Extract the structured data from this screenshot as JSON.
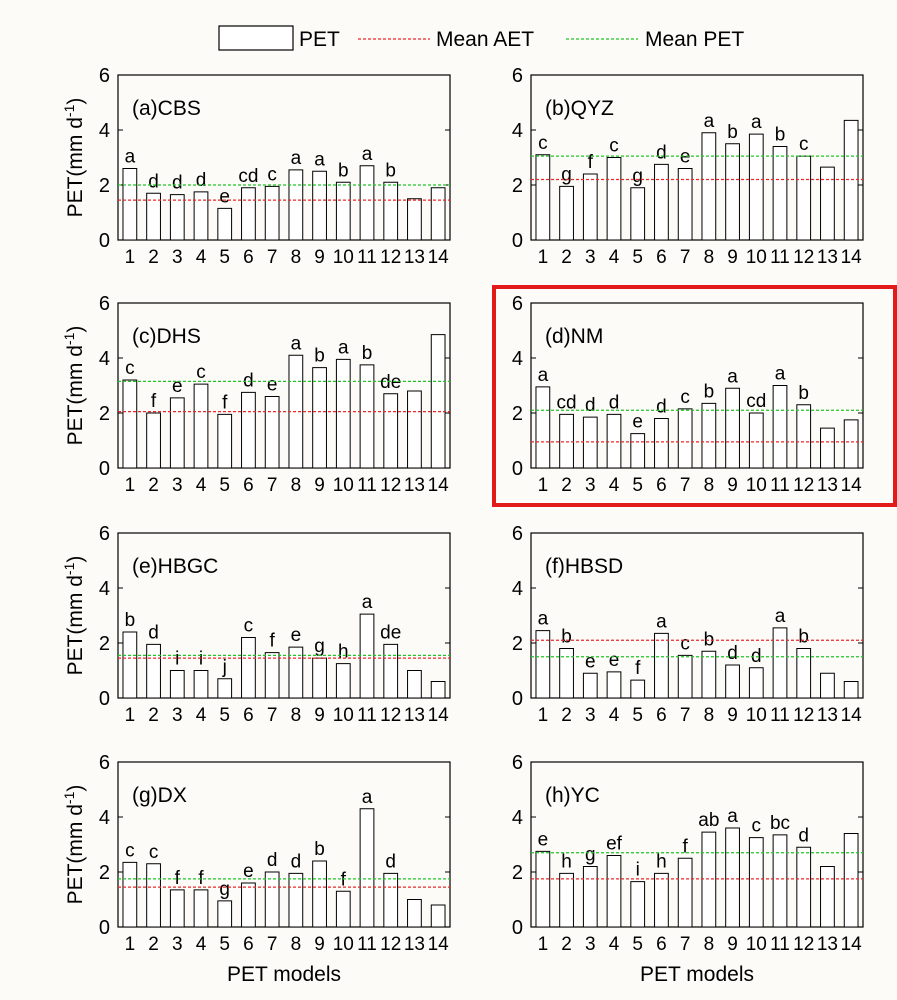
{
  "legend": {
    "pet_label": "PET",
    "mean_aet_label": "Mean AET",
    "mean_pet_label": "Mean PET"
  },
  "colors": {
    "bar_fill": "#ffffff",
    "bar_stroke": "#000000",
    "mean_aet": "#e8282a",
    "mean_pet": "#22c42a",
    "highlight_box": "#e31a1a"
  },
  "x_axis_title": "PET models",
  "y_axis_title": "PET(mm d-1)",
  "chart_data": [
    {
      "type": "bar",
      "title": "(a)CBS",
      "ylabel": "PET(mm d-1)",
      "xlabel": "",
      "ylim": [
        0,
        6
      ],
      "yticks": [
        0,
        2,
        4,
        6
      ],
      "categories": [
        "1",
        "2",
        "3",
        "4",
        "5",
        "6",
        "7",
        "8",
        "9",
        "10",
        "11",
        "12",
        "13",
        "14"
      ],
      "values": [
        2.6,
        1.7,
        1.65,
        1.75,
        1.15,
        1.9,
        1.95,
        2.55,
        2.5,
        2.1,
        2.7,
        2.1,
        1.5,
        1.9
      ],
      "letters": [
        "a",
        "d",
        "d",
        "d",
        "e",
        "cd",
        "c",
        "a",
        "a",
        "b",
        "a",
        "b",
        "",
        ""
      ],
      "mean_aet": 1.45,
      "mean_pet": 2.0,
      "highlighted": false
    },
    {
      "type": "bar",
      "title": "(b)QYZ",
      "ylabel": "",
      "xlabel": "",
      "ylim": [
        0,
        6
      ],
      "yticks": [
        0,
        2,
        4,
        6
      ],
      "categories": [
        "1",
        "2",
        "3",
        "4",
        "5",
        "6",
        "7",
        "8",
        "9",
        "10",
        "11",
        "12",
        "13",
        "14"
      ],
      "values": [
        3.1,
        1.95,
        2.4,
        3.0,
        1.9,
        2.75,
        2.6,
        3.9,
        3.5,
        3.85,
        3.4,
        3.05,
        2.65,
        4.35
      ],
      "letters": [
        "c",
        "g",
        "f",
        "c",
        "g",
        "d",
        "e",
        "a",
        "b",
        "a",
        "b",
        "c",
        "",
        ""
      ],
      "mean_aet": 2.2,
      "mean_pet": 3.05,
      "highlighted": false
    },
    {
      "type": "bar",
      "title": "(c)DHS",
      "ylabel": "PET(mm d-1)",
      "xlabel": "",
      "ylim": [
        0,
        6
      ],
      "yticks": [
        0,
        2,
        4,
        6
      ],
      "categories": [
        "1",
        "2",
        "3",
        "4",
        "5",
        "6",
        "7",
        "8",
        "9",
        "10",
        "11",
        "12",
        "13",
        "14"
      ],
      "values": [
        3.2,
        2.0,
        2.55,
        3.05,
        1.95,
        2.75,
        2.6,
        4.1,
        3.65,
        3.95,
        3.75,
        2.7,
        2.8,
        4.85
      ],
      "letters": [
        "c",
        "f",
        "e",
        "c",
        "f",
        "d",
        "e",
        "a",
        "b",
        "a",
        "b",
        "de",
        "",
        ""
      ],
      "mean_aet": 2.05,
      "mean_pet": 3.15,
      "highlighted": false
    },
    {
      "type": "bar",
      "title": "(d)NM",
      "ylabel": "",
      "xlabel": "",
      "ylim": [
        0,
        6
      ],
      "yticks": [
        0,
        2,
        4,
        6
      ],
      "categories": [
        "1",
        "2",
        "3",
        "4",
        "5",
        "6",
        "7",
        "8",
        "9",
        "10",
        "11",
        "12",
        "13",
        "14"
      ],
      "values": [
        2.95,
        1.95,
        1.85,
        1.95,
        1.25,
        1.8,
        2.15,
        2.35,
        2.9,
        2.0,
        3.0,
        2.3,
        1.45,
        1.75
      ],
      "letters": [
        "a",
        "cd",
        "d",
        "d",
        "e",
        "d",
        "c",
        "b",
        "a",
        "cd",
        "a",
        "b",
        "",
        ""
      ],
      "mean_aet": 0.95,
      "mean_pet": 2.1,
      "highlighted": true
    },
    {
      "type": "bar",
      "title": "(e)HBGC",
      "ylabel": "PET(mm d-1)",
      "xlabel": "",
      "ylim": [
        0,
        6
      ],
      "yticks": [
        0,
        2,
        4,
        6
      ],
      "categories": [
        "1",
        "2",
        "3",
        "4",
        "5",
        "6",
        "7",
        "8",
        "9",
        "10",
        "11",
        "12",
        "13",
        "14"
      ],
      "values": [
        2.4,
        1.95,
        1.0,
        1.0,
        0.7,
        2.2,
        1.65,
        1.85,
        1.45,
        1.25,
        3.05,
        1.95,
        1.0,
        0.6
      ],
      "letters": [
        "b",
        "d",
        "i",
        "i",
        "j",
        "c",
        "f",
        "e",
        "g",
        "h",
        "a",
        "de",
        "",
        ""
      ],
      "mean_aet": 1.45,
      "mean_pet": 1.55,
      "highlighted": false
    },
    {
      "type": "bar",
      "title": "(f)HBSD",
      "ylabel": "",
      "xlabel": "",
      "ylim": [
        0,
        6
      ],
      "yticks": [
        0,
        2,
        4,
        6
      ],
      "categories": [
        "1",
        "2",
        "3",
        "4",
        "5",
        "6",
        "7",
        "8",
        "9",
        "10",
        "11",
        "12",
        "13",
        "14"
      ],
      "values": [
        2.45,
        1.8,
        0.9,
        0.95,
        0.65,
        2.35,
        1.55,
        1.7,
        1.2,
        1.1,
        2.55,
        1.8,
        0.9,
        0.6
      ],
      "letters": [
        "a",
        "b",
        "e",
        "e",
        "f",
        "a",
        "c",
        "b",
        "d",
        "d",
        "a",
        "b",
        "",
        ""
      ],
      "mean_aet": 2.1,
      "mean_pet": 1.5,
      "highlighted": false
    },
    {
      "type": "bar",
      "title": "(g)DX",
      "ylabel": "PET(mm d-1)",
      "xlabel": "PET models",
      "ylim": [
        0,
        6
      ],
      "yticks": [
        0,
        2,
        4,
        6
      ],
      "categories": [
        "1",
        "2",
        "3",
        "4",
        "5",
        "6",
        "7",
        "8",
        "9",
        "10",
        "11",
        "12",
        "13",
        "14"
      ],
      "values": [
        2.35,
        2.3,
        1.35,
        1.35,
        0.95,
        1.6,
        2.0,
        1.95,
        2.4,
        1.3,
        4.3,
        1.95,
        1.0,
        0.8
      ],
      "letters": [
        "c",
        "c",
        "f",
        "f",
        "g",
        "e",
        "d",
        "d",
        "b",
        "f",
        "a",
        "d",
        "",
        ""
      ],
      "mean_aet": 1.45,
      "mean_pet": 1.75,
      "highlighted": false
    },
    {
      "type": "bar",
      "title": "(h)YC",
      "ylabel": "",
      "xlabel": "PET models",
      "ylim": [
        0,
        6
      ],
      "yticks": [
        0,
        2,
        4,
        6
      ],
      "categories": [
        "1",
        "2",
        "3",
        "4",
        "5",
        "6",
        "7",
        "8",
        "9",
        "10",
        "11",
        "12",
        "13",
        "14"
      ],
      "values": [
        2.75,
        1.95,
        2.2,
        2.6,
        1.65,
        1.95,
        2.5,
        3.45,
        3.6,
        3.25,
        3.35,
        2.9,
        2.2,
        3.4
      ],
      "letters": [
        "e",
        "h",
        "g",
        "ef",
        "i",
        "h",
        "f",
        "ab",
        "a",
        "c",
        "bc",
        "d",
        "",
        ""
      ],
      "mean_aet": 1.75,
      "mean_pet": 2.7,
      "highlighted": false
    }
  ]
}
